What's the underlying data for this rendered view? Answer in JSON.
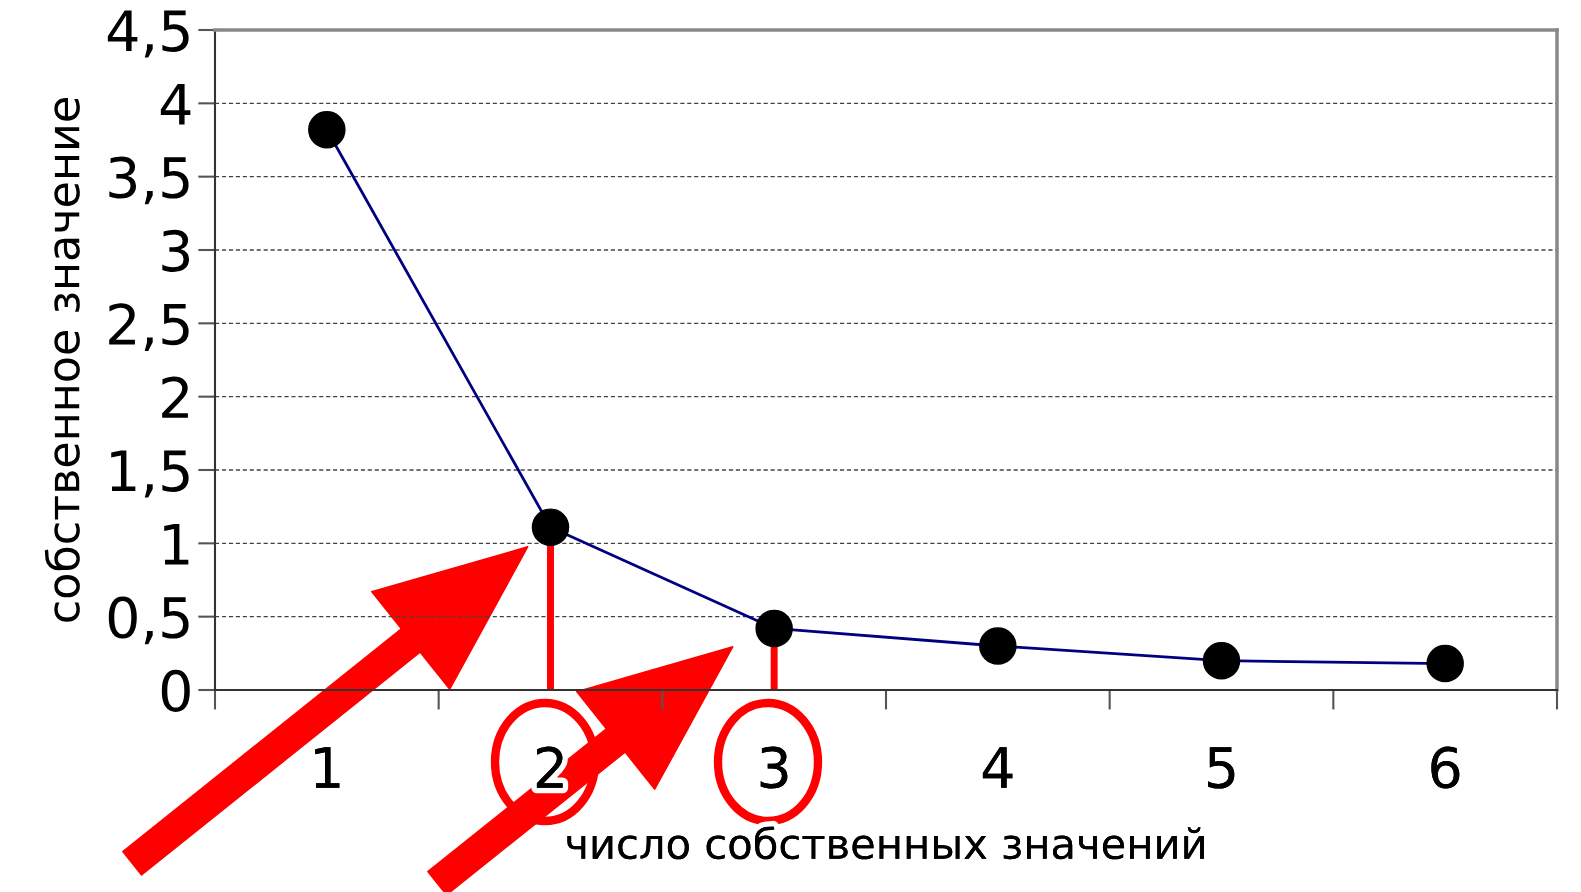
{
  "chart_data": {
    "type": "line",
    "xlabel": "число собственных значений",
    "ylabel": "собственное значение",
    "categories": [
      "1",
      "2",
      "3",
      "4",
      "5",
      "6"
    ],
    "series": [
      {
        "color": "#000080",
        "values": [
          3.82,
          1.11,
          0.42,
          0.3,
          0.2,
          0.18
        ]
      }
    ],
    "ylim": [
      0,
      4.5
    ],
    "yticks": [
      0,
      {
        "value": 0.5,
        "label": "0,5"
      },
      1,
      {
        "value": 1.5,
        "label": "1,5"
      },
      2,
      {
        "value": 2.5,
        "label": "2,5"
      },
      3,
      {
        "value": 3.5,
        "label": "3,5"
      },
      4,
      {
        "value": 4.5,
        "label": "4,5"
      }
    ],
    "grid": "y",
    "marker": "circle",
    "line_style": "solid"
  }
}
